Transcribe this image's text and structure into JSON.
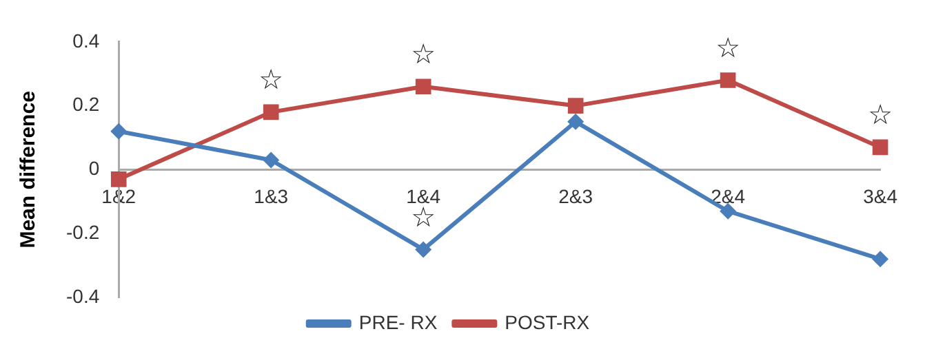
{
  "chart_data": {
    "type": "line",
    "ylabel": "Mean difference",
    "categories": [
      "1&2",
      "1&3",
      "1&4",
      "2&3",
      "2&4",
      "3&4"
    ],
    "series": [
      {
        "name": "PRE- RX",
        "color": "#4a7ebb",
        "values": [
          0.12,
          0.03,
          -0.25,
          0.15,
          -0.13,
          -0.28
        ],
        "marker": "diamond"
      },
      {
        "name": "POST-RX",
        "color": "#be4b48",
        "values": [
          -0.03,
          0.18,
          0.26,
          0.2,
          0.28,
          0.07
        ],
        "marker": "square"
      }
    ],
    "ylim": [
      -0.4,
      0.4
    ],
    "yticks": [
      -0.4,
      -0.2,
      0,
      0.2,
      0.4
    ],
    "grid": false,
    "legend": "bottom",
    "annotations": [
      {
        "text": "☆",
        "x": "1&3",
        "y": 0.18
      },
      {
        "text": "☆",
        "x": "1&4",
        "y": 0.26
      },
      {
        "text": "☆",
        "x": "1&4",
        "y": -0.25
      },
      {
        "text": "☆",
        "x": "2&4",
        "y": 0.28
      },
      {
        "text": "☆",
        "x": "3&4",
        "y": 0.07
      }
    ]
  }
}
